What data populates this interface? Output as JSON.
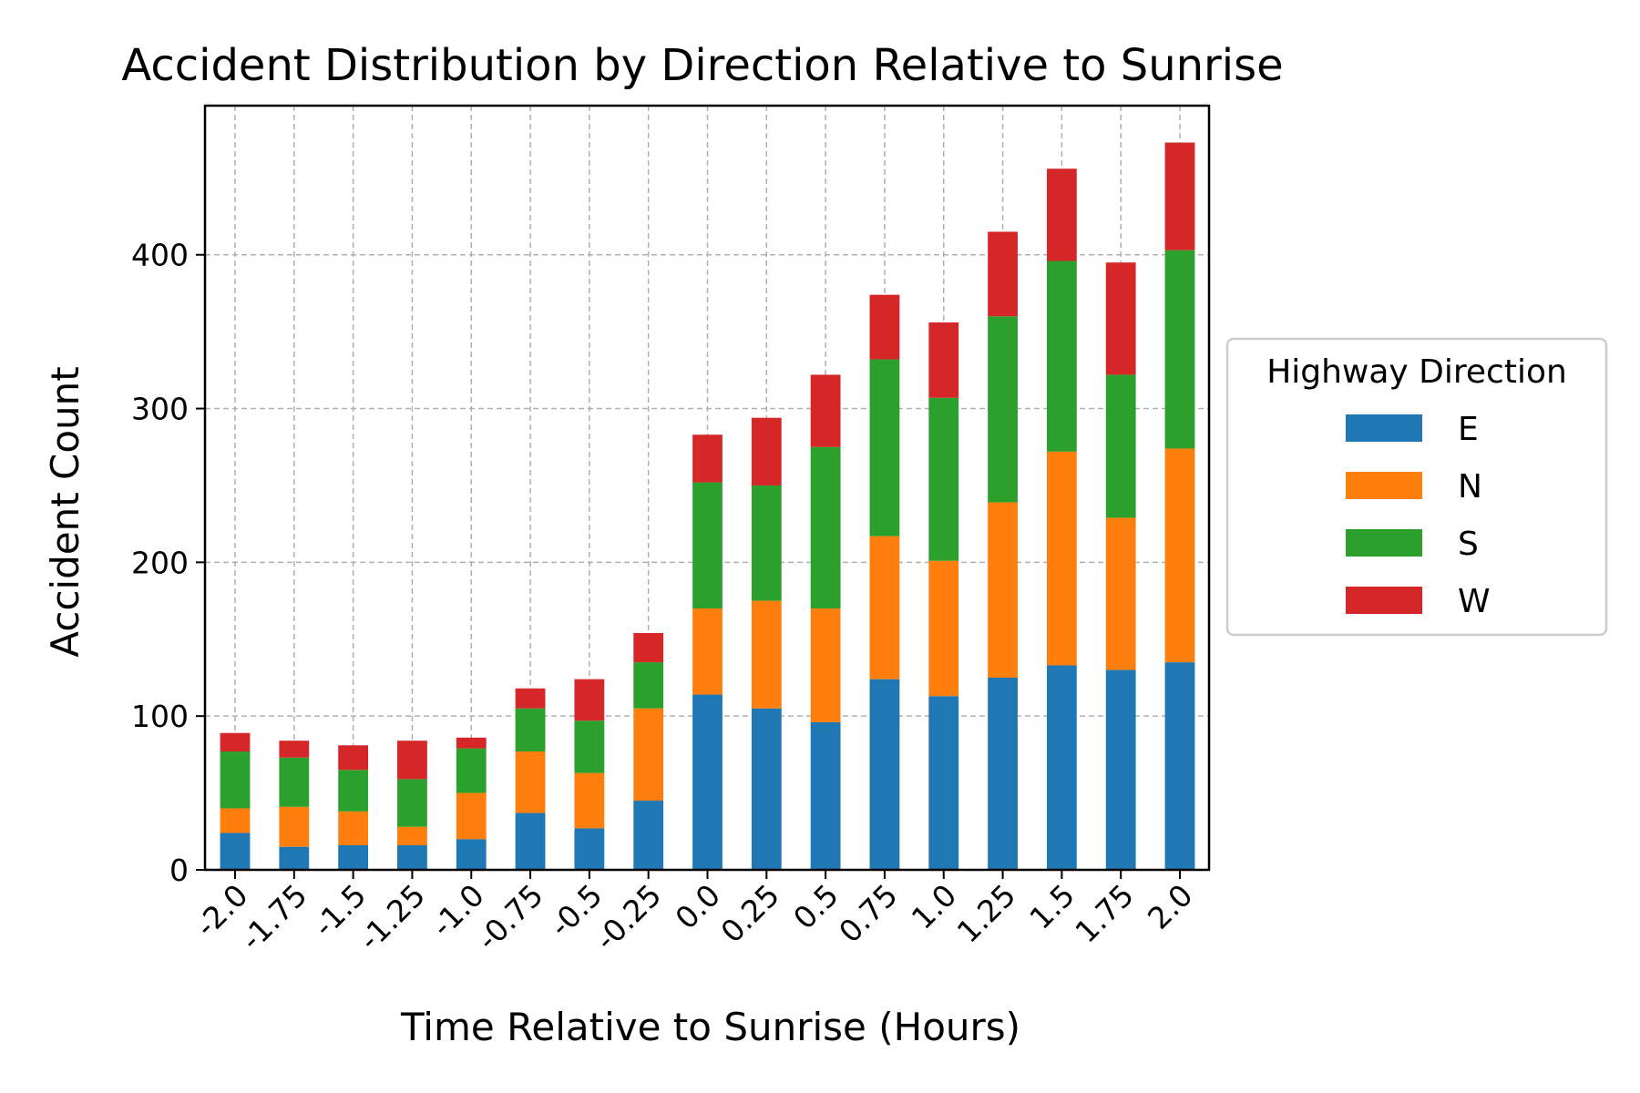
{
  "chart_data": {
    "type": "bar",
    "stacked": true,
    "title": "Accident Distribution by Direction Relative to Sunrise",
    "xlabel": "Time Relative to Sunrise (Hours)",
    "ylabel": "Accident Count",
    "ylim": [
      0,
      497
    ],
    "yticks": [
      0,
      100,
      200,
      300,
      400
    ],
    "grid": true,
    "legend": {
      "title": "Highway Direction",
      "placement": "right"
    },
    "categories": [
      "-2.0",
      "-1.75",
      "-1.5",
      "-1.25",
      "-1.0",
      "-0.75",
      "-0.5",
      "-0.25",
      "0.0",
      "0.25",
      "0.5",
      "0.75",
      "1.0",
      "1.25",
      "1.5",
      "1.75",
      "2.0"
    ],
    "series": [
      {
        "name": "E",
        "color": "#1f77b4",
        "values": [
          24,
          15,
          16,
          16,
          20,
          37,
          27,
          45,
          114,
          105,
          96,
          124,
          113,
          125,
          133,
          130,
          135
        ]
      },
      {
        "name": "N",
        "color": "#ff7f0e",
        "values": [
          16,
          26,
          22,
          12,
          30,
          40,
          36,
          60,
          56,
          70,
          74,
          93,
          88,
          114,
          139,
          99,
          139
        ]
      },
      {
        "name": "S",
        "color": "#2ca02c",
        "values": [
          37,
          32,
          27,
          31,
          29,
          28,
          34,
          30,
          82,
          75,
          105,
          115,
          106,
          121,
          124,
          93,
          129
        ]
      },
      {
        "name": "W",
        "color": "#d62728",
        "values": [
          12,
          11,
          16,
          25,
          7,
          13,
          27,
          19,
          31,
          44,
          47,
          42,
          49,
          55,
          60,
          73,
          70
        ]
      }
    ]
  }
}
